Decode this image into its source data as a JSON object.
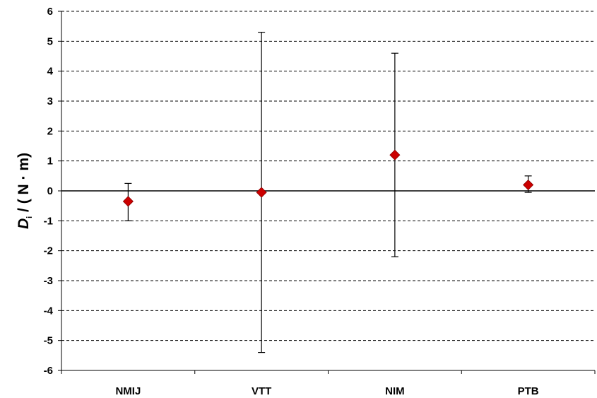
{
  "chart_data": {
    "type": "scatter",
    "title": "",
    "xlabel": "",
    "ylabel": {
      "main": "D",
      "subscript": "i",
      "rest": " / ( N · m)"
    },
    "ylim": [
      -6,
      6
    ],
    "yticks": [
      "6",
      "5",
      "4",
      "3",
      "2",
      "1",
      "0",
      "-1",
      "-2",
      "-3",
      "-4",
      "-5",
      "-6"
    ],
    "grid": true,
    "categories": [
      "NMIJ",
      "VTT",
      "NIM",
      "PTB"
    ],
    "series": [
      {
        "values": [
          -0.35,
          -0.05,
          1.2,
          0.2
        ],
        "error_low": [
          -1.0,
          -5.4,
          -2.2,
          -0.05
        ],
        "error_high": [
          0.25,
          5.3,
          4.6,
          0.5
        ],
        "marker_color": "#cc0000"
      }
    ]
  }
}
